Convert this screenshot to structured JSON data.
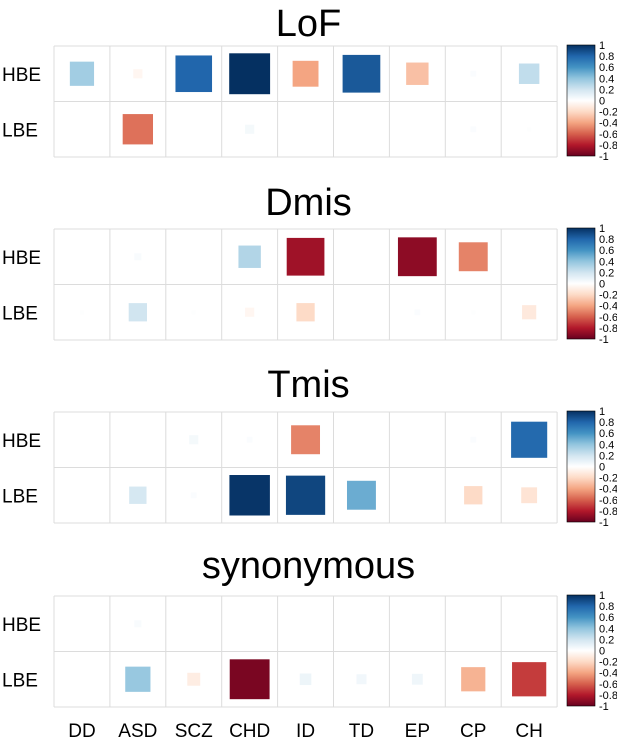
{
  "chart_data": {
    "type": "heatmap",
    "columns": [
      "DD",
      "ASD",
      "SCZ",
      "CHD",
      "ID",
      "TD",
      "EP",
      "CP",
      "CH"
    ],
    "rows": [
      "HBE",
      "LBE"
    ],
    "colorbar_ticks": [
      "1",
      "0.8",
      "0.6",
      "0.4",
      "0.2",
      "0",
      "-0.2",
      "-0.4",
      "-0.6",
      "-0.8",
      "-1"
    ],
    "color_scale": {
      "neg": "#67001f",
      "mid": "#ffffff",
      "pos": "#053061"
    },
    "panels": [
      {
        "title": "LoF",
        "values": [
          [
            0.35,
            -0.05,
            0.8,
            1.0,
            -0.4,
            0.85,
            -0.3,
            0.02,
            0.25
          ],
          [
            0,
            -0.55,
            0,
            0.05,
            0,
            0,
            0,
            0.02,
            0.01
          ]
        ]
      },
      {
        "title": "Dmis",
        "values": [
          [
            0,
            0.03,
            0,
            0.3,
            -0.85,
            0,
            -0.9,
            -0.5,
            0
          ],
          [
            0.01,
            0.2,
            0.01,
            -0.05,
            -0.2,
            0,
            0.02,
            0.01,
            -0.12
          ]
        ]
      },
      {
        "title": "Tmis",
        "values": [
          [
            0,
            0,
            0.05,
            0.02,
            -0.5,
            0,
            0,
            0.02,
            0.78
          ],
          [
            0,
            0.18,
            0.02,
            0.98,
            0.92,
            0.5,
            0,
            -0.2,
            -0.15
          ]
        ]
      },
      {
        "title": "synonymous",
        "values": [
          [
            0,
            0.03,
            0,
            0,
            0,
            0,
            0,
            0,
            0
          ],
          [
            0,
            0.38,
            -0.1,
            -0.95,
            0.08,
            0.06,
            0.07,
            -0.35,
            -0.7
          ]
        ]
      }
    ]
  }
}
